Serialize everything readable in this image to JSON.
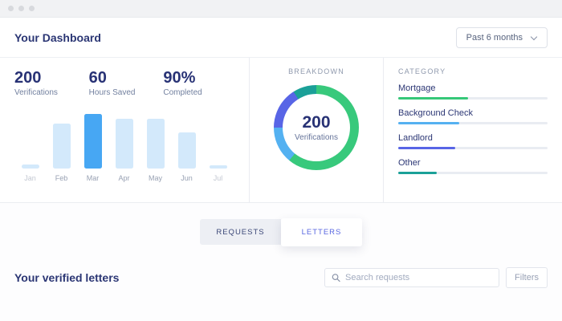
{
  "header": {
    "title": "Your Dashboard"
  },
  "range_selector": {
    "value": "Past 6 months"
  },
  "stats": [
    {
      "value": "200",
      "label": "Verifications"
    },
    {
      "value": "60",
      "label": "Hours Saved"
    },
    {
      "value": "90%",
      "label": "Completed"
    }
  ],
  "breakdown": {
    "heading": "BREAKDOWN",
    "center_value": "200",
    "center_label": "Verifications"
  },
  "category": {
    "heading": "CATEGORY",
    "items": [
      {
        "label": "Mortgage",
        "percent": 47,
        "color": "#35c878"
      },
      {
        "label": "Background Check",
        "percent": 41,
        "color": "#55b1f1"
      },
      {
        "label": "Landlord",
        "percent": 38,
        "color": "#5865e6"
      },
      {
        "label": "Other",
        "percent": 26,
        "color": "#1ba098"
      }
    ]
  },
  "tabs": [
    {
      "label": "REQUESTS",
      "active": false
    },
    {
      "label": "LETTERS",
      "active": true
    }
  ],
  "letters": {
    "title": "Your verified letters",
    "search_placeholder": "Search requests",
    "filters_label": "Filters"
  },
  "chart_data": [
    {
      "type": "bar",
      "title": "Verifications by month",
      "categories": [
        "Jan",
        "Feb",
        "Mar",
        "Apr",
        "May",
        "Jun",
        "Jul"
      ],
      "values": [
        8,
        82,
        100,
        91,
        91,
        66,
        6
      ],
      "unit": "percent of tallest bar (no value axis shown)",
      "highlight_category": "Mar",
      "bar_color": "#d3e9fb",
      "highlight_color": "#47a7f3",
      "faint_labels": [
        "Jan",
        "Jul"
      ],
      "ylim": [
        0,
        100
      ],
      "grid": false
    },
    {
      "type": "pie",
      "subtype": "donut",
      "title": "BREAKDOWN",
      "center_value": 200,
      "center_label": "Verifications",
      "segments": [
        {
          "label": "Mortgage",
          "percent": 61,
          "color": "#38c97c"
        },
        {
          "label": "Background Check",
          "percent": 14,
          "color": "#54b1f1"
        },
        {
          "label": "Landlord",
          "percent": 16,
          "color": "#5865e6"
        },
        {
          "label": "Other",
          "percent": 9,
          "color": "#1ba098"
        }
      ]
    },
    {
      "type": "bar",
      "subtype": "horizontal-progress",
      "title": "CATEGORY",
      "categories": [
        "Mortgage",
        "Background Check",
        "Landlord",
        "Other"
      ],
      "values": [
        47,
        41,
        38,
        26
      ],
      "unit": "percent of track width",
      "colors": [
        "#35c878",
        "#55b1f1",
        "#5865e6",
        "#1ba098"
      ]
    }
  ],
  "colors": {
    "navy_text": "#2b3674",
    "bar_light": "#d3e9fb",
    "bar_active": "#47a7f3",
    "green": "#35c878",
    "light_blue": "#55b1f1",
    "indigo": "#5865e6",
    "teal": "#1ba098",
    "track": "#e9ecf2",
    "active_tab_text": "#5866e0"
  }
}
